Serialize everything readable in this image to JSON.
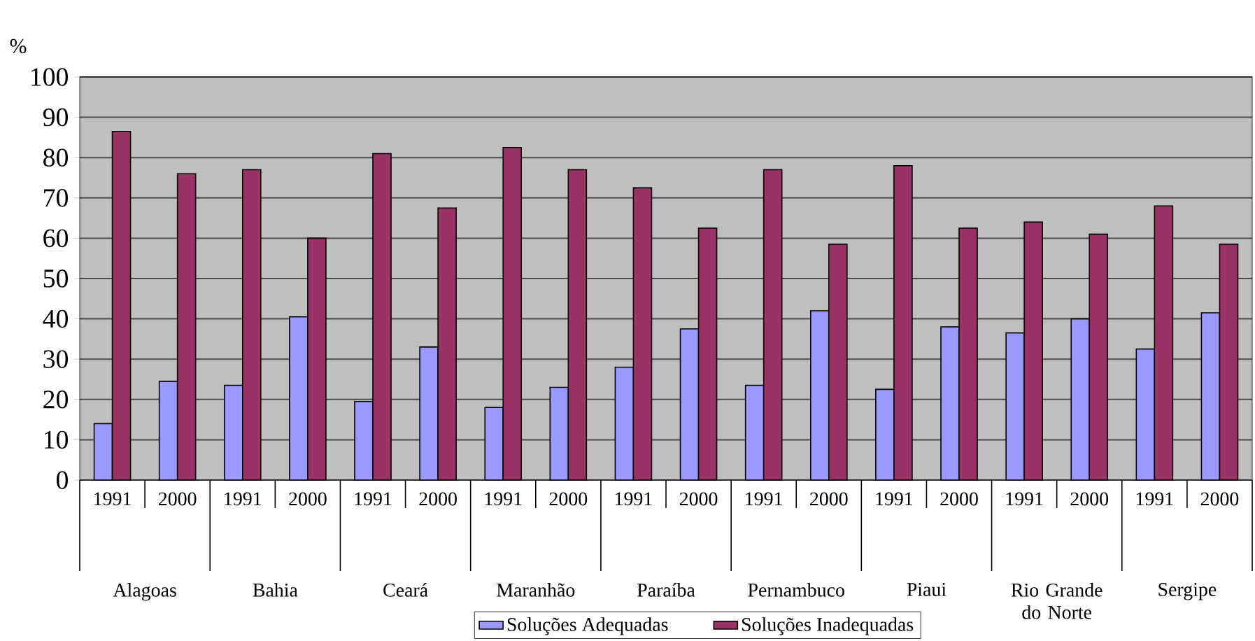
{
  "chart_data": {
    "type": "bar",
    "ylabel": "%",
    "categories": [
      "1991",
      "2000",
      "1991",
      "2000",
      "1991",
      "2000",
      "1991",
      "2000",
      "1991",
      "2000",
      "1991",
      "2000",
      "1991",
      "2000",
      "1991",
      "2000",
      "1991",
      "2000"
    ],
    "annotations": [
      "Alagoas",
      "Bahia",
      "Ceará",
      "Maranhão",
      "Paraíba",
      "Pernambuco",
      "Piaui",
      "Rio Grande do Norte",
      "Sergipe"
    ],
    "series": [
      {
        "name": "Soluções Adequadas",
        "color": "#9999ff",
        "values": [
          14,
          24.5,
          23.5,
          40.5,
          19.5,
          33,
          18,
          23,
          28,
          37.5,
          23.5,
          42,
          22.5,
          38,
          36.5,
          40,
          32.5,
          41.5
        ]
      },
      {
        "name": "Soluções Inadequadas",
        "color": "#993366",
        "values": [
          86.5,
          76,
          77,
          60,
          81,
          67.5,
          82.5,
          77,
          72.5,
          62.5,
          77,
          58.5,
          78,
          62.5,
          64,
          61,
          68,
          58.5
        ]
      }
    ],
    "ylim": [
      0,
      100
    ],
    "yticks": [
      0,
      10,
      20,
      30,
      40,
      50,
      60,
      70,
      80,
      90,
      100
    ],
    "grid": "y",
    "legend": "bottom"
  }
}
